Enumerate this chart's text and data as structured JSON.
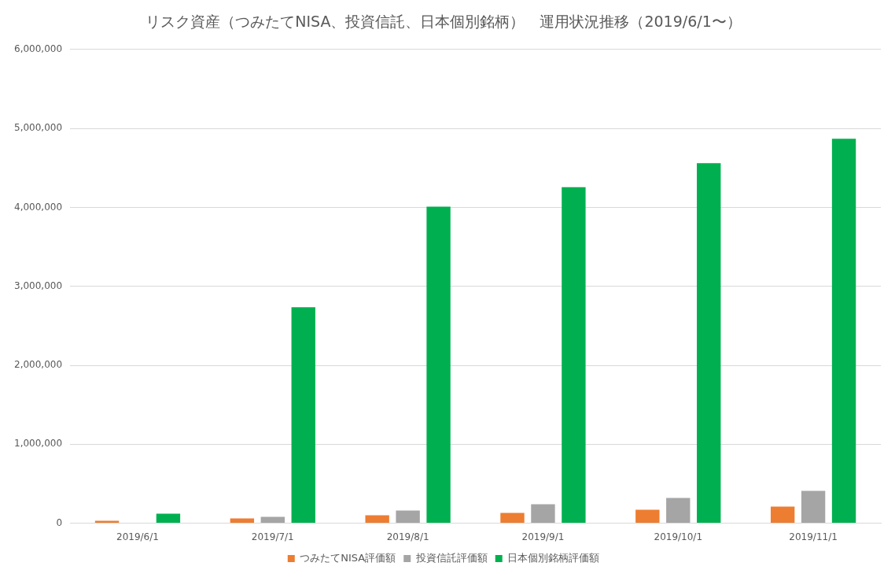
{
  "chart_data": {
    "type": "bar",
    "title": "リスク資産（つみたてNISA、投資信託、日本個別銘柄）　運用状況推移（2019/6/1〜）",
    "categories": [
      "2019/6/1",
      "2019/7/1",
      "2019/8/1",
      "2019/9/1",
      "2019/10/1",
      "2019/11/1"
    ],
    "series": [
      {
        "name": "つみたてNISA評価額",
        "color": "#ed7d31",
        "values": [
          30000,
          60000,
          100000,
          130000,
          170000,
          210000
        ]
      },
      {
        "name": "投資信託評価額",
        "color": "#a5a5a5",
        "values": [
          null,
          80000,
          160000,
          240000,
          320000,
          410000
        ]
      },
      {
        "name": "日本個別銘柄評価額",
        "color": "#00b050",
        "values": [
          120000,
          2735000,
          4010000,
          4255000,
          4560000,
          4870000
        ]
      }
    ],
    "ylim": [
      0,
      6000000
    ],
    "yticks": [
      {
        "value": 0,
        "label": "0"
      },
      {
        "value": 1000000,
        "label": "1,000,000"
      },
      {
        "value": 2000000,
        "label": "2,000,000"
      },
      {
        "value": 3000000,
        "label": "3,000,000"
      },
      {
        "value": 4000000,
        "label": "4,000,000"
      },
      {
        "value": 5000000,
        "label": "5,000,000"
      },
      {
        "value": 6000000,
        "label": "6,000,000"
      }
    ],
    "grid": "y",
    "legend": "bottom"
  }
}
